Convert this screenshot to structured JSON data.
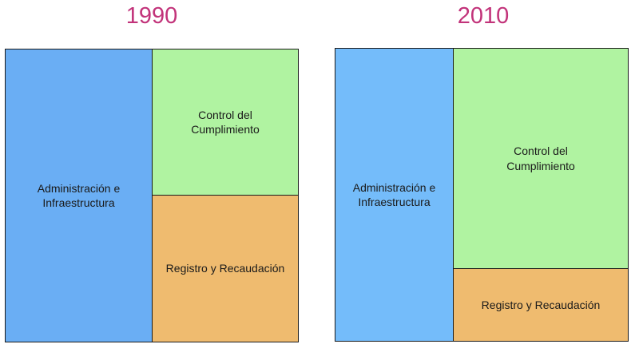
{
  "panels": [
    {
      "year": "1990",
      "cells": {
        "admin": "Administración e\nInfraestructura",
        "control": "Control del\nCumplimiento",
        "registro": "Registro y Recaudación"
      }
    },
    {
      "year": "2010",
      "cells": {
        "admin": "Administración e\nInfraestructura",
        "control": "Control del\nCumplimiento",
        "registro": "Registro y Recaudación"
      }
    }
  ],
  "colors": {
    "title": "#c2337a",
    "admin_1990": "#6aaef4",
    "admin_2010": "#74bcfa",
    "control": "#b0f3a1",
    "registro": "#efbb6f",
    "border": "#1a1a1a"
  }
}
